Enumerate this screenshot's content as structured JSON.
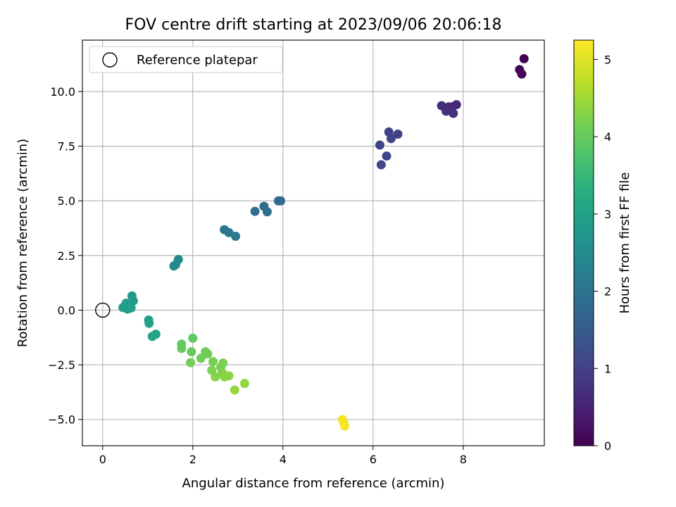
{
  "chart_data": {
    "type": "scatter",
    "title": "FOV centre drift starting at 2023/09/06 20:06:18",
    "xlabel": "Angular distance from reference (arcmin)",
    "ylabel": "Rotation from reference (arcmin)",
    "colorbar_label": "Hours from first FF file",
    "xlim": [
      -0.45,
      9.8
    ],
    "ylim": [
      -6.2,
      12.35
    ],
    "clim": [
      0,
      5.25
    ],
    "xticks": [
      0,
      2,
      4,
      6,
      8
    ],
    "yticks": [
      -5.0,
      -2.5,
      0.0,
      2.5,
      5.0,
      7.5,
      10.0
    ],
    "cticks": [
      0,
      1,
      2,
      3,
      4,
      5
    ],
    "grid": true,
    "colormap": "viridis",
    "legend": {
      "position": "upper-left",
      "entries": [
        "Reference platepar"
      ]
    },
    "reference_point": {
      "x": 0,
      "y": 0
    },
    "points": [
      {
        "x": 9.35,
        "y": 11.5,
        "t": 0.02
      },
      {
        "x": 9.25,
        "y": 11.0,
        "t": 0.05
      },
      {
        "x": 9.3,
        "y": 10.8,
        "t": 0.08
      },
      {
        "x": 7.85,
        "y": 9.4,
        "t": 0.6
      },
      {
        "x": 7.75,
        "y": 9.3,
        "t": 0.62
      },
      {
        "x": 7.68,
        "y": 9.3,
        "t": 0.65
      },
      {
        "x": 7.52,
        "y": 9.35,
        "t": 0.68
      },
      {
        "x": 7.62,
        "y": 9.1,
        "t": 0.7
      },
      {
        "x": 7.78,
        "y": 9.0,
        "t": 0.72
      },
      {
        "x": 6.55,
        "y": 8.05,
        "t": 1.0
      },
      {
        "x": 6.35,
        "y": 8.15,
        "t": 1.02
      },
      {
        "x": 6.4,
        "y": 7.85,
        "t": 1.05
      },
      {
        "x": 6.15,
        "y": 7.55,
        "t": 1.07
      },
      {
        "x": 6.3,
        "y": 7.05,
        "t": 1.1
      },
      {
        "x": 6.18,
        "y": 6.65,
        "t": 1.12
      },
      {
        "x": 3.9,
        "y": 5.0,
        "t": 1.8
      },
      {
        "x": 3.95,
        "y": 5.0,
        "t": 1.82
      },
      {
        "x": 3.58,
        "y": 4.75,
        "t": 1.85
      },
      {
        "x": 3.38,
        "y": 4.52,
        "t": 1.88
      },
      {
        "x": 3.65,
        "y": 4.5,
        "t": 1.9
      },
      {
        "x": 2.7,
        "y": 3.68,
        "t": 2.05
      },
      {
        "x": 2.8,
        "y": 3.55,
        "t": 2.08
      },
      {
        "x": 2.95,
        "y": 3.38,
        "t": 2.1
      },
      {
        "x": 1.68,
        "y": 2.32,
        "t": 2.45
      },
      {
        "x": 1.62,
        "y": 2.08,
        "t": 2.48
      },
      {
        "x": 1.58,
        "y": 2.02,
        "t": 2.5
      },
      {
        "x": 0.65,
        "y": 0.65,
        "t": 2.85
      },
      {
        "x": 0.68,
        "y": 0.42,
        "t": 2.87
      },
      {
        "x": 0.62,
        "y": 0.3,
        "t": 2.88
      },
      {
        "x": 0.52,
        "y": 0.32,
        "t": 2.9
      },
      {
        "x": 0.58,
        "y": 0.18,
        "t": 2.91
      },
      {
        "x": 0.45,
        "y": 0.12,
        "t": 2.92
      },
      {
        "x": 0.55,
        "y": 0.05,
        "t": 2.93
      },
      {
        "x": 0.63,
        "y": 0.1,
        "t": 2.94
      },
      {
        "x": 1.02,
        "y": -0.45,
        "t": 3.0
      },
      {
        "x": 1.03,
        "y": -0.6,
        "t": 3.02
      },
      {
        "x": 1.18,
        "y": -1.1,
        "t": 3.05
      },
      {
        "x": 1.1,
        "y": -1.2,
        "t": 3.08
      },
      {
        "x": 2.0,
        "y": -1.28,
        "t": 3.95
      },
      {
        "x": 1.75,
        "y": -1.55,
        "t": 3.98
      },
      {
        "x": 1.75,
        "y": -1.75,
        "t": 4.0
      },
      {
        "x": 1.97,
        "y": -1.9,
        "t": 4.02
      },
      {
        "x": 2.28,
        "y": -1.9,
        "t": 4.05
      },
      {
        "x": 2.33,
        "y": -2.0,
        "t": 4.08
      },
      {
        "x": 2.18,
        "y": -2.2,
        "t": 4.1
      },
      {
        "x": 1.95,
        "y": -2.4,
        "t": 4.12
      },
      {
        "x": 2.45,
        "y": -2.35,
        "t": 4.15
      },
      {
        "x": 2.67,
        "y": -2.42,
        "t": 4.18
      },
      {
        "x": 2.62,
        "y": -2.62,
        "t": 4.2
      },
      {
        "x": 2.42,
        "y": -2.75,
        "t": 4.22
      },
      {
        "x": 2.65,
        "y": -2.85,
        "t": 4.25
      },
      {
        "x": 2.5,
        "y": -3.05,
        "t": 4.28
      },
      {
        "x": 2.7,
        "y": -3.05,
        "t": 4.3
      },
      {
        "x": 2.8,
        "y": -3.0,
        "t": 4.32
      },
      {
        "x": 3.15,
        "y": -3.35,
        "t": 4.4
      },
      {
        "x": 2.93,
        "y": -3.65,
        "t": 4.42
      },
      {
        "x": 5.32,
        "y": -5.0,
        "t": 5.15
      },
      {
        "x": 5.35,
        "y": -5.15,
        "t": 5.18
      },
      {
        "x": 5.37,
        "y": -5.3,
        "t": 5.2
      }
    ]
  }
}
